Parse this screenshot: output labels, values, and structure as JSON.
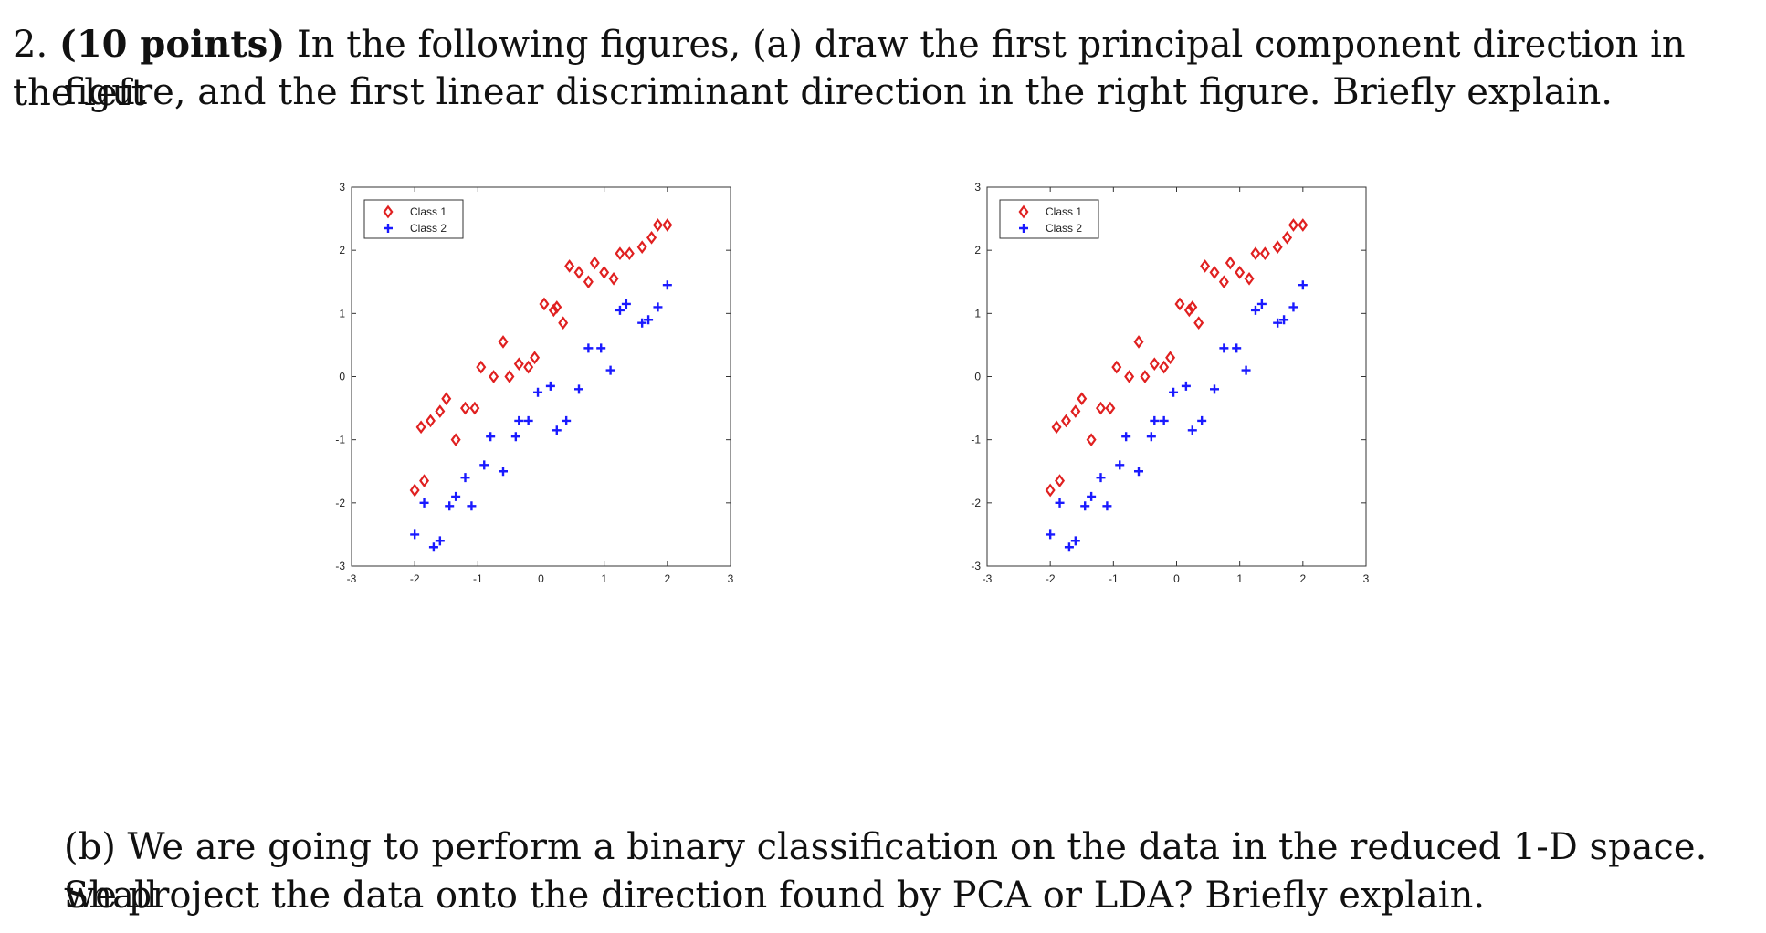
{
  "question": {
    "number": "2.",
    "points": "(10 points)",
    "part_a_line1_rest": "In the following figures, (a) draw the first principal component direction in the left",
    "part_a_line2": "figure, and the first linear discriminant direction in the right figure. Briefly explain.",
    "part_b_line1": "(b) We are going to perform a binary classification on the data in the reduced 1-D space. Shall",
    "part_b_line2": "we project the data onto the direction found by PCA or LDA? Briefly explain."
  },
  "colors": {
    "class1": "#e02020",
    "class2": "#1a1aff",
    "axis": "#333333"
  },
  "chart_data": [
    {
      "type": "scatter",
      "panel": "left",
      "title": "",
      "xlabel": "",
      "ylabel": "",
      "xlim": [
        -3,
        3
      ],
      "ylim": [
        -3,
        3
      ],
      "xticks": [
        "-3",
        "-2",
        "-1",
        "0",
        "1",
        "2",
        "3"
      ],
      "yticks": [
        "3",
        "2",
        "1",
        "0",
        "-1",
        "-2",
        "-3"
      ],
      "legend": {
        "position": "top-left",
        "entries": [
          "Class 1",
          "Class 2"
        ]
      },
      "series": [
        {
          "name": "Class 1",
          "marker": "diamond",
          "x": [
            -2.0,
            -1.85,
            -1.9,
            -1.75,
            -1.6,
            -1.5,
            -1.35,
            -1.2,
            -1.05,
            -0.95,
            -0.75,
            -0.6,
            -0.5,
            -0.35,
            -0.2,
            -0.1,
            0.05,
            0.2,
            0.25,
            0.35,
            0.45,
            0.6,
            0.75,
            0.85,
            1.0,
            1.15,
            1.25,
            1.4,
            1.6,
            1.75,
            1.85,
            2.0
          ],
          "y": [
            -1.8,
            -1.65,
            -0.8,
            -0.7,
            -0.55,
            -0.35,
            -1.0,
            -0.5,
            -0.5,
            0.15,
            0.0,
            0.55,
            0.0,
            0.2,
            0.15,
            0.3,
            1.15,
            1.05,
            1.1,
            0.85,
            1.75,
            1.65,
            1.5,
            1.8,
            1.65,
            1.55,
            1.95,
            1.95,
            2.05,
            2.2,
            2.4,
            2.4
          ]
        },
        {
          "name": "Class 2",
          "marker": "plus",
          "x": [
            -2.0,
            -1.85,
            -1.7,
            -1.6,
            -1.45,
            -1.35,
            -1.2,
            -1.1,
            -0.9,
            -0.8,
            -0.6,
            -0.4,
            -0.35,
            -0.2,
            -0.05,
            0.15,
            0.25,
            0.4,
            0.6,
            0.75,
            0.95,
            1.1,
            1.25,
            1.35,
            1.6,
            1.7,
            1.85,
            2.0
          ],
          "y": [
            -2.5,
            -2.0,
            -2.7,
            -2.6,
            -2.05,
            -1.9,
            -1.6,
            -2.05,
            -1.4,
            -0.95,
            -1.5,
            -0.95,
            -0.7,
            -0.7,
            -0.25,
            -0.15,
            -0.85,
            -0.7,
            -0.2,
            0.45,
            0.45,
            0.1,
            1.05,
            1.15,
            0.85,
            0.9,
            1.1,
            1.45
          ]
        }
      ]
    },
    {
      "type": "scatter",
      "panel": "right",
      "title": "",
      "xlabel": "",
      "ylabel": "",
      "xlim": [
        -3,
        3
      ],
      "ylim": [
        -3,
        3
      ],
      "xticks": [
        "-3",
        "-2",
        "-1",
        "0",
        "1",
        "2",
        "3"
      ],
      "yticks": [
        "3",
        "2",
        "1",
        "0",
        "-1",
        "-2",
        "-3"
      ],
      "legend": {
        "position": "top-left",
        "entries": [
          "Class 1",
          "Class 2"
        ]
      },
      "series": [
        {
          "name": "Class 1",
          "marker": "diamond",
          "x": [
            -2.0,
            -1.85,
            -1.9,
            -1.75,
            -1.6,
            -1.5,
            -1.35,
            -1.2,
            -1.05,
            -0.95,
            -0.75,
            -0.6,
            -0.5,
            -0.35,
            -0.2,
            -0.1,
            0.05,
            0.2,
            0.25,
            0.35,
            0.45,
            0.6,
            0.75,
            0.85,
            1.0,
            1.15,
            1.25,
            1.4,
            1.6,
            1.75,
            1.85,
            2.0
          ],
          "y": [
            -1.8,
            -1.65,
            -0.8,
            -0.7,
            -0.55,
            -0.35,
            -1.0,
            -0.5,
            -0.5,
            0.15,
            0.0,
            0.55,
            0.0,
            0.2,
            0.15,
            0.3,
            1.15,
            1.05,
            1.1,
            0.85,
            1.75,
            1.65,
            1.5,
            1.8,
            1.65,
            1.55,
            1.95,
            1.95,
            2.05,
            2.2,
            2.4,
            2.4
          ]
        },
        {
          "name": "Class 2",
          "marker": "plus",
          "x": [
            -2.0,
            -1.85,
            -1.7,
            -1.6,
            -1.45,
            -1.35,
            -1.2,
            -1.1,
            -0.9,
            -0.8,
            -0.6,
            -0.4,
            -0.35,
            -0.2,
            -0.05,
            0.15,
            0.25,
            0.4,
            0.6,
            0.75,
            0.95,
            1.1,
            1.25,
            1.35,
            1.6,
            1.7,
            1.85,
            2.0
          ],
          "y": [
            -2.5,
            -2.0,
            -2.7,
            -2.6,
            -2.05,
            -1.9,
            -1.6,
            -2.05,
            -1.4,
            -0.95,
            -1.5,
            -0.95,
            -0.7,
            -0.7,
            -0.25,
            -0.15,
            -0.85,
            -0.7,
            -0.2,
            0.45,
            0.45,
            0.1,
            1.05,
            1.15,
            0.85,
            0.9,
            1.1,
            1.45
          ]
        }
      ]
    }
  ]
}
